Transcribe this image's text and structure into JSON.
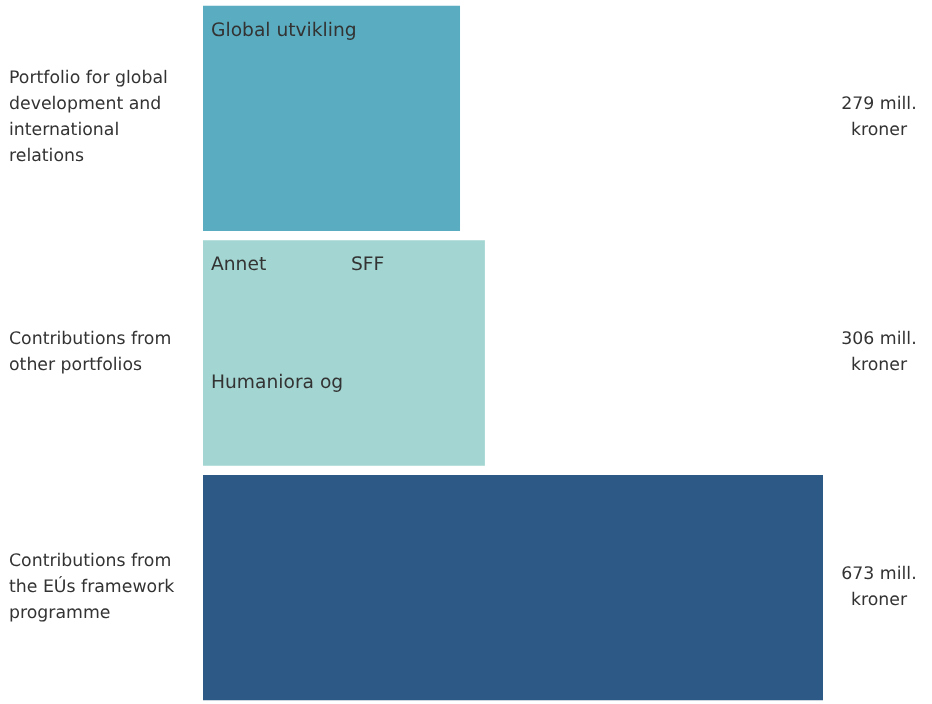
{
  "chart_data": {
    "type": "bar",
    "orientation": "horizontal",
    "categories": [
      "Portfolio for global development and international relations",
      "Contributions from other portfolios",
      "Contributions from the EÚs framework programme"
    ],
    "values": [
      279,
      306,
      673
    ],
    "colors": [
      "#5aadc0",
      "#a3d6d2",
      "#2c5985"
    ],
    "value_labels": [
      "279 mill. kroner",
      "306 mill. kroner",
      "673 mill. kroner"
    ],
    "annotations": [
      "Global utvikling",
      "Annet",
      "SFF",
      "Humaniora og"
    ],
    "grid": false
  }
}
